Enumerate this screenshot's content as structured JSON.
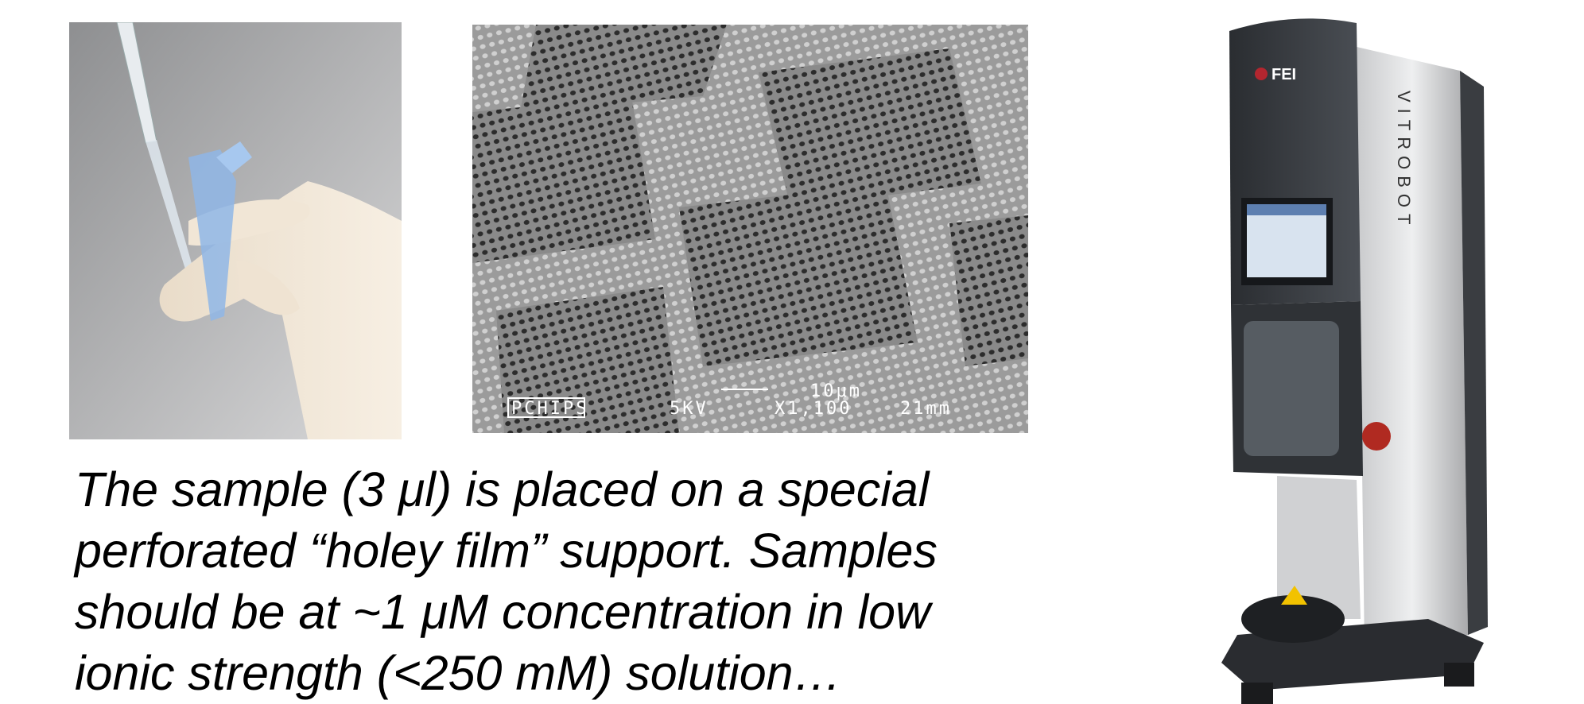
{
  "caption": {
    "lines": [
      "The sample (3 μl) is placed on a special",
      "perforated “holey film” support. Samples",
      "should be at ~1 μM concentration in low",
      "ionic strength (<250 mM) solution…"
    ]
  },
  "micrograph": {
    "label": "PCHIPS",
    "voltage": "5KV",
    "scale": "10μm",
    "magnification": "X1,100",
    "distance": "21mm"
  },
  "instrument": {
    "brand": "FEI",
    "name": "VITROBOT"
  }
}
